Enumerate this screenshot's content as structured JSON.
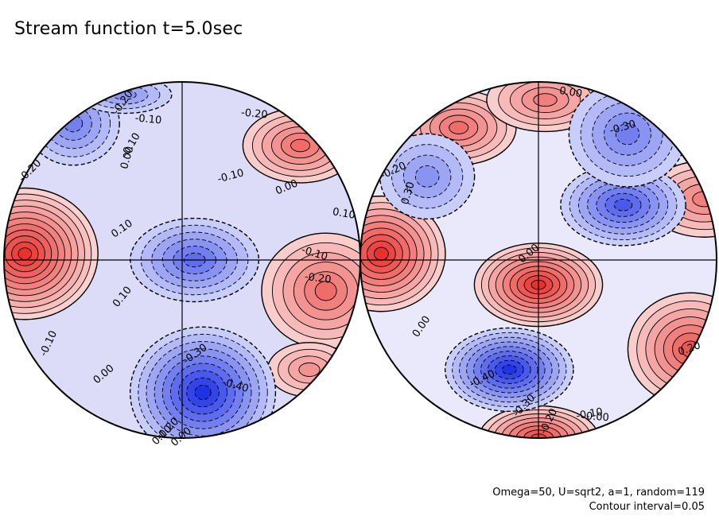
{
  "title": "Stream function t=5.0sec",
  "footer": {
    "params": "Omega=50, U=sqrt2, a=1, random=119",
    "contour": "Contour interval=0.05"
  },
  "colors": {
    "positive": "#e8322e",
    "negative": "#1e32e6",
    "neutral": "#ffffff",
    "contour_line": "#000000"
  },
  "chart_data": {
    "type": "heatmap",
    "title": "Stream function t=5.0sec",
    "projection": "two hemispheres (orthographic)",
    "contour_interval": 0.05,
    "grid": false,
    "panels": [
      {
        "name": "",
        "range": [
          -0.45,
          0.6
        ],
        "features": [
          {
            "sign": "positive",
            "peak": 0.55,
            "lon": -62,
            "lat": 2
          },
          {
            "sign": "positive",
            "peak": 0.3,
            "lon": 60,
            "lat": 40
          },
          {
            "sign": "positive",
            "peak": 0.3,
            "lon": 55,
            "lat": -10
          },
          {
            "sign": "positive",
            "peak": 0.2,
            "lon": 65,
            "lat": -38
          },
          {
            "sign": "negative",
            "peak": -0.45,
            "lon": 10,
            "lat": -48
          },
          {
            "sign": "negative",
            "peak": -0.3,
            "lon": 4,
            "lat": 0
          },
          {
            "sign": "negative",
            "peak": -0.25,
            "lon": -72,
            "lat": 50
          },
          {
            "sign": "negative",
            "peak": -0.2,
            "lon": -60,
            "lat": 68
          }
        ],
        "labels": [
          {
            "text": "-0.20",
            "lon": -45,
            "lat": 62
          },
          {
            "text": "-0.10",
            "lon": -18,
            "lat": 52
          },
          {
            "text": "0.00",
            "lon": -22,
            "lat": 35
          },
          {
            "text": "-0.10",
            "lon": -22,
            "lat": 40
          },
          {
            "text": "0.10",
            "lon": -20,
            "lat": 10
          },
          {
            "text": "0.10",
            "lon": -20,
            "lat": -12
          },
          {
            "text": "-0.20",
            "lon": -80,
            "lat": 30
          },
          {
            "text": "-0.10",
            "lon": 18,
            "lat": 28
          },
          {
            "text": "0.00",
            "lon": 40,
            "lat": 24
          },
          {
            "text": "0.10",
            "lon": 70,
            "lat": 15
          },
          {
            "text": "-0.20",
            "lon": 45,
            "lat": 55
          },
          {
            "text": "-0.10",
            "lon": 48,
            "lat": 2
          },
          {
            "text": "-0.20",
            "lon": 50,
            "lat": -6
          },
          {
            "text": "-0.30",
            "lon": 5,
            "lat": -32
          },
          {
            "text": "-0.40",
            "lon": 25,
            "lat": -45
          },
          {
            "text": "0.00",
            "lon": -35,
            "lat": -40
          },
          {
            "text": "-0.10",
            "lon": -58,
            "lat": -28
          },
          {
            "text": "-0.20",
            "lon": -15,
            "lat": -72
          },
          {
            "text": "0.10",
            "lon": -40,
            "lat": -80
          },
          {
            "text": "0.00",
            "lon": -2,
            "lat": -84
          }
        ]
      },
      {
        "name": "",
        "range": [
          -0.45,
          0.6
        ],
        "features": [
          {
            "sign": "positive",
            "peak": 0.45,
            "lon": -62,
            "lat": 2
          },
          {
            "sign": "positive",
            "peak": 0.3,
            "lon": -42,
            "lat": 48
          },
          {
            "sign": "positive",
            "peak": 0.25,
            "lon": 5,
            "lat": 64
          },
          {
            "sign": "positive",
            "peak": 0.45,
            "lon": 0,
            "lat": -8
          },
          {
            "sign": "positive",
            "peak": 0.35,
            "lon": 80,
            "lat": -30
          },
          {
            "sign": "positive",
            "peak": 0.25,
            "lon": 82,
            "lat": 20
          },
          {
            "sign": "positive",
            "peak": 0.4,
            "lon": 2,
            "lat": -88
          },
          {
            "sign": "negative",
            "peak": -0.35,
            "lon": 30,
            "lat": 18
          },
          {
            "sign": "negative",
            "peak": -0.25,
            "lon": 45,
            "lat": 45
          },
          {
            "sign": "negative",
            "peak": -0.45,
            "lon": -12,
            "lat": -38
          },
          {
            "sign": "negative",
            "peak": -0.2,
            "lon": -45,
            "lat": 28
          }
        ],
        "labels": [
          {
            "text": "-0.20",
            "lon": -70,
            "lat": 30
          },
          {
            "text": "0.30",
            "lon": -52,
            "lat": 22
          },
          {
            "text": "0.00",
            "lon": -3,
            "lat": 2
          },
          {
            "text": "0.00",
            "lon": -45,
            "lat": -22
          },
          {
            "text": "-0.40",
            "lon": -25,
            "lat": -42
          },
          {
            "text": "-0.30",
            "lon": -8,
            "lat": -55
          },
          {
            "text": "-0.20",
            "lon": 8,
            "lat": -65
          },
          {
            "text": "-0.10",
            "lon": 35,
            "lat": -60
          },
          {
            "text": "0.00",
            "lon": 45,
            "lat": -62
          },
          {
            "text": "-0.30",
            "lon": 45,
            "lat": 48
          },
          {
            "text": "0.00",
            "lon": 32,
            "lat": 70
          },
          {
            "text": "0.20",
            "lon": 78,
            "lat": -30
          }
        ]
      }
    ]
  }
}
